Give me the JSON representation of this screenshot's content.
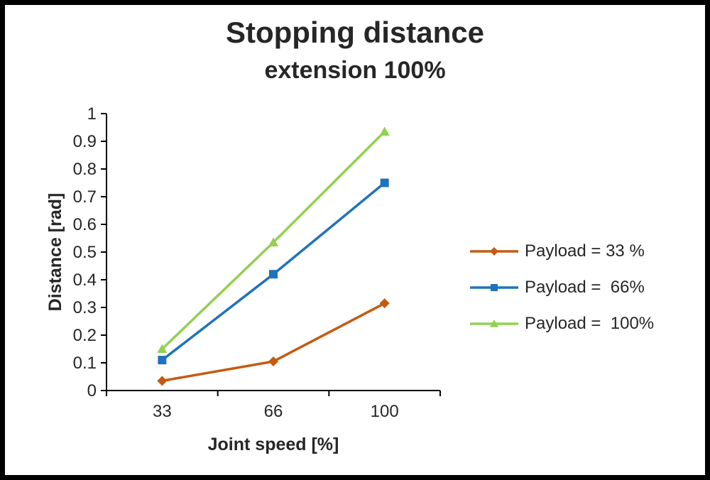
{
  "chart": {
    "title": "Stopping distance",
    "subtitle": "extension 100%"
  },
  "chart_data": {
    "type": "line",
    "title": "Stopping distance",
    "subtitle": "extension 100%",
    "xlabel": "Joint speed [%]",
    "ylabel": "Distance [rad]",
    "categories": [
      "33",
      "66",
      "100"
    ],
    "ylim": [
      0,
      1
    ],
    "ytick_step": 0.1,
    "grid": false,
    "legend_position": "right",
    "series": [
      {
        "name": "Payload = 33 %",
        "marker": "diamond",
        "color": "#C55A11",
        "values": [
          0.035,
          0.105,
          0.315
        ]
      },
      {
        "name": "Payload =  66%",
        "marker": "square",
        "color": "#1F72BC",
        "values": [
          0.11,
          0.42,
          0.75
        ]
      },
      {
        "name": "Payload =  100%",
        "marker": "triangle",
        "color": "#92D050",
        "values": [
          0.15,
          0.535,
          0.935
        ]
      }
    ]
  }
}
